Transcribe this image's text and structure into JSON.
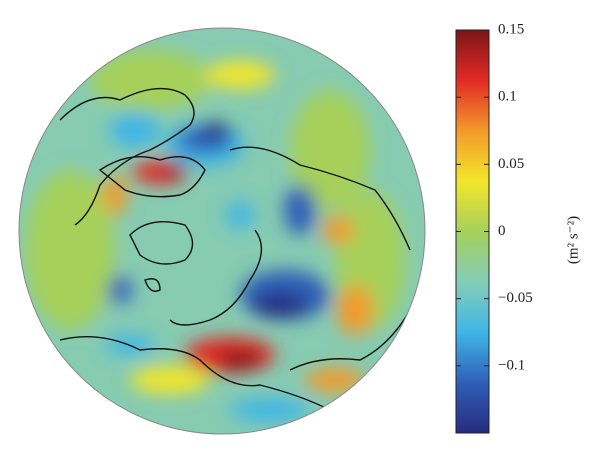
{
  "colorbar": {
    "label": "(m² s⁻²)",
    "clim": [
      -0.15,
      0.15
    ],
    "ticks": [
      0.15,
      0.1,
      0.05,
      0,
      {
        "value": -0.05,
        "label": "−0.05"
      },
      {
        "value": -0.1,
        "label": "−0.1"
      }
    ],
    "colormap": [
      "#272b7e",
      "#2f5fb8",
      "#3fb6e6",
      "#84cdb7",
      "#a6d05a",
      "#f3e62a",
      "#f39a2a",
      "#e12a25",
      "#7d1517"
    ]
  }
}
